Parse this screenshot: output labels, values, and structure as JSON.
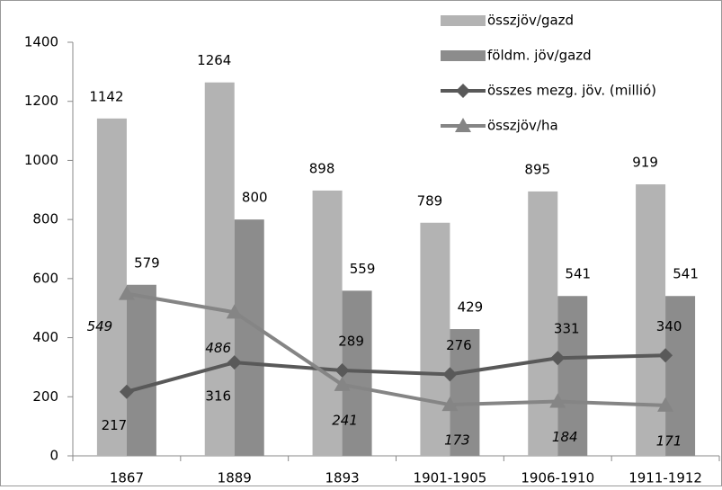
{
  "chart_data": {
    "type": "bar",
    "categories": [
      "1867",
      "1889",
      "1893",
      "1901-1905",
      "1906-1910",
      "1911-1912"
    ],
    "series": [
      {
        "name": "összjöv/gazd",
        "type": "bar",
        "color": "#b3b3b3",
        "values": [
          1142,
          1264,
          898,
          789,
          895,
          919
        ]
      },
      {
        "name": "földm. jöv/gazd",
        "type": "bar",
        "color": "#8c8c8c",
        "values": [
          579,
          800,
          559,
          429,
          541,
          541
        ]
      },
      {
        "name": "összes mezg. jöv. (millió)",
        "type": "line",
        "marker": "diamond",
        "color": "#595959",
        "values": [
          217,
          316,
          289,
          276,
          331,
          340
        ]
      },
      {
        "name": "összjöv/ha",
        "type": "line",
        "marker": "triangle",
        "color": "#858585",
        "values": [
          549,
          486,
          241,
          173,
          184,
          171
        ]
      }
    ],
    "ylim": [
      0,
      1400
    ],
    "yticks": [
      0,
      200,
      400,
      600,
      800,
      1000,
      1200,
      1400
    ],
    "grid": false,
    "legend": "top-right"
  }
}
